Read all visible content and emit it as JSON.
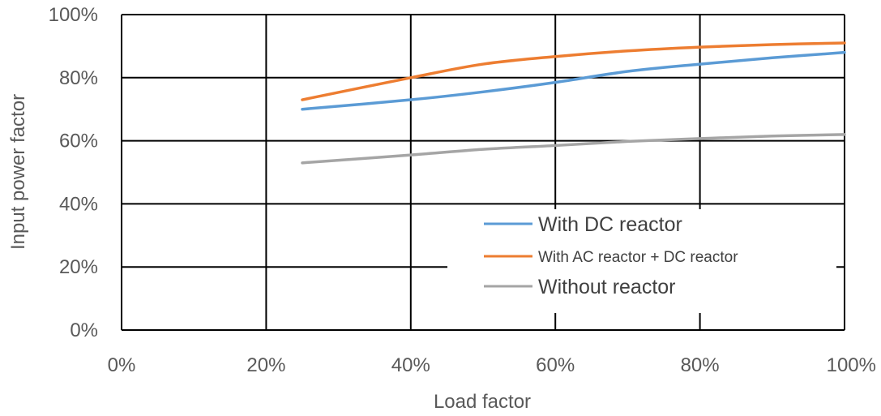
{
  "chart_data": {
    "type": "line",
    "title": "",
    "xlabel": "Load factor",
    "ylabel": "Input power factor",
    "xlim": [
      0,
      100
    ],
    "ylim": [
      0,
      100
    ],
    "x_ticks": [
      "0%",
      "20%",
      "40%",
      "60%",
      "80%",
      "100%"
    ],
    "y_ticks": [
      "0%",
      "20%",
      "40%",
      "60%",
      "80%",
      "100%"
    ],
    "grid": true,
    "legend_position": "bottom-right",
    "series": [
      {
        "name": "With DC reactor",
        "color": "#5B9BD5",
        "x": [
          25,
          40,
          50,
          60,
          70,
          80,
          90,
          100
        ],
        "y": [
          70,
          73,
          75.5,
          78.5,
          82,
          84.3,
          86.3,
          88
        ]
      },
      {
        "name": "With AC reactor + DC reactor",
        "color": "#ED7D31",
        "x": [
          25,
          40,
          50,
          60,
          70,
          80,
          90,
          100
        ],
        "y": [
          73,
          80,
          84.3,
          86.7,
          88.5,
          89.7,
          90.5,
          91
        ]
      },
      {
        "name": "Without reactor",
        "color": "#A5A5A5",
        "x": [
          25,
          40,
          50,
          60,
          70,
          80,
          90,
          100
        ],
        "y": [
          53,
          55.5,
          57.3,
          58.5,
          59.8,
          60.7,
          61.5,
          62
        ]
      }
    ]
  }
}
